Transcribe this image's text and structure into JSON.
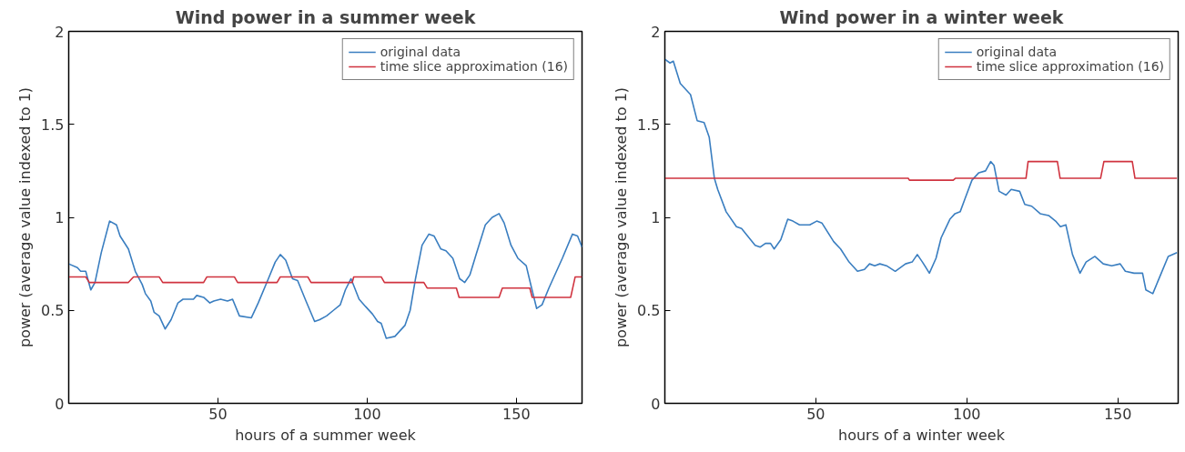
{
  "chart_data": [
    {
      "type": "line",
      "title": "Wind power in a summer week",
      "xlabel": "hours of a summer week",
      "ylabel": "power (average value indexed to 1)",
      "xlim": [
        0,
        172
      ],
      "ylim": [
        0,
        2
      ],
      "xticks": [
        50,
        100,
        150
      ],
      "yticks": [
        0,
        0.5,
        1,
        1.5,
        2
      ],
      "grid": false,
      "legend": "top right",
      "series": [
        {
          "name": "original data",
          "color": "#3a7ec0",
          "x": [
            0,
            2.9,
            4,
            5.7,
            7.4,
            8.8,
            10.9,
            13.7,
            16,
            17.2,
            20,
            22.3,
            24.6,
            25.7,
            27.5,
            28.6,
            30.3,
            32.3,
            34.3,
            36.6,
            38.3,
            41.8,
            42.9,
            45.2,
            47.3,
            48.6,
            50.9,
            53.2,
            54.9,
            57.2,
            61.2,
            63.5,
            66.9,
            69.2,
            70.9,
            72.7,
            75,
            76.7,
            79.5,
            82.4,
            84.1,
            86.4,
            88.7,
            91,
            92.7,
            94.6,
            97.3,
            99.5,
            101.8,
            103.5,
            104.7,
            106.4,
            109.3,
            112.7,
            114.4,
            116.2,
            118.4,
            120.7,
            122.4,
            124.7,
            126.4,
            128.7,
            131,
            132.7,
            134.4,
            136.7,
            139.6,
            141.9,
            144.2,
            145.9,
            148.2,
            150.5,
            153.3,
            155.1,
            156.8,
            158.6,
            160.9,
            165.4,
            168.8,
            170.5,
            172
          ],
          "values": [
            0.75,
            0.73,
            0.71,
            0.71,
            0.61,
            0.65,
            0.81,
            0.98,
            0.96,
            0.9,
            0.83,
            0.71,
            0.64,
            0.59,
            0.55,
            0.49,
            0.47,
            0.4,
            0.45,
            0.54,
            0.56,
            0.56,
            0.58,
            0.57,
            0.54,
            0.55,
            0.56,
            0.55,
            0.56,
            0.47,
            0.46,
            0.54,
            0.67,
            0.76,
            0.8,
            0.77,
            0.67,
            0.66,
            0.55,
            0.44,
            0.45,
            0.47,
            0.5,
            0.53,
            0.61,
            0.67,
            0.56,
            0.52,
            0.48,
            0.44,
            0.43,
            0.35,
            0.36,
            0.42,
            0.5,
            0.67,
            0.85,
            0.91,
            0.9,
            0.83,
            0.82,
            0.78,
            0.67,
            0.65,
            0.69,
            0.81,
            0.96,
            1.0,
            1.02,
            0.97,
            0.85,
            0.78,
            0.74,
            0.62,
            0.51,
            0.53,
            0.62,
            0.78,
            0.91,
            0.9,
            0.84
          ]
        },
        {
          "name": "time slice approximation (16)",
          "color": "#d0333f",
          "x": [
            0,
            5.7,
            6.9,
            20,
            21.7,
            30.3,
            31.5,
            45.2,
            46.3,
            55.5,
            56.6,
            69.8,
            70.9,
            80.1,
            81.2,
            95,
            95.5,
            104.7,
            105.8,
            119,
            120.1,
            129.9,
            130.8,
            144.2,
            145.3,
            154.5,
            155.3,
            168.2,
            169.7,
            172
          ],
          "values": [
            0.68,
            0.68,
            0.65,
            0.65,
            0.68,
            0.68,
            0.65,
            0.65,
            0.68,
            0.68,
            0.65,
            0.65,
            0.68,
            0.68,
            0.65,
            0.65,
            0.68,
            0.68,
            0.65,
            0.65,
            0.62,
            0.62,
            0.57,
            0.57,
            0.62,
            0.62,
            0.57,
            0.57,
            0.68,
            0.68
          ]
        }
      ]
    },
    {
      "type": "line",
      "title": "Wind power in a winter week",
      "xlabel": "hours of a winter week",
      "ylabel": "power (average value indexed to 1)",
      "xlim": [
        0,
        170
      ],
      "ylim": [
        0,
        2
      ],
      "xticks": [
        50,
        100,
        150
      ],
      "yticks": [
        0,
        0.5,
        1,
        1.5,
        2
      ],
      "grid": false,
      "legend": "top right",
      "series": [
        {
          "name": "original data",
          "color": "#3a7ec0",
          "x": [
            0,
            1.7,
            2.8,
            5.1,
            8.5,
            10.7,
            13,
            14.7,
            16.4,
            17.5,
            20.3,
            23.7,
            25.4,
            29.9,
            31.6,
            33.3,
            35,
            36.2,
            38.4,
            40.7,
            42.4,
            44.6,
            48,
            50.3,
            52,
            55.9,
            58.2,
            61,
            63.8,
            66.1,
            67.8,
            69.5,
            71.2,
            73.4,
            76.3,
            79.7,
            81.9,
            83.6,
            85.3,
            87.6,
            89.8,
            91.5,
            94.4,
            96.1,
            97.8,
            99.4,
            101.7,
            104,
            106.2,
            107.9,
            109,
            110.7,
            113,
            114.7,
            117.5,
            119.2,
            121.5,
            124.3,
            127.1,
            129.4,
            131,
            132.8,
            135,
            137.5,
            139.5,
            142.4,
            145.2,
            148,
            150.8,
            152.5,
            155.4,
            158.2,
            159.3,
            161.6,
            164.4,
            166.7,
            169.6
          ],
          "values": [
            1.85,
            1.83,
            1.84,
            1.72,
            1.66,
            1.52,
            1.51,
            1.43,
            1.21,
            1.15,
            1.03,
            0.95,
            0.94,
            0.85,
            0.84,
            0.86,
            0.86,
            0.83,
            0.88,
            0.99,
            0.98,
            0.96,
            0.96,
            0.98,
            0.97,
            0.87,
            0.83,
            0.76,
            0.71,
            0.72,
            0.75,
            0.74,
            0.75,
            0.74,
            0.71,
            0.75,
            0.76,
            0.8,
            0.76,
            0.7,
            0.78,
            0.89,
            0.99,
            1.02,
            1.03,
            1.1,
            1.2,
            1.24,
            1.25,
            1.3,
            1.28,
            1.14,
            1.12,
            1.15,
            1.14,
            1.07,
            1.06,
            1.02,
            1.01,
            0.98,
            0.95,
            0.96,
            0.8,
            0.7,
            0.76,
            0.79,
            0.75,
            0.74,
            0.75,
            0.71,
            0.7,
            0.7,
            0.61,
            0.59,
            0.7,
            0.79,
            0.81
          ]
        },
        {
          "name": "time slice approximation (16)",
          "color": "#d0333f",
          "x": [
            0,
            80.6,
            81,
            95.5,
            96.2,
            119.6,
            120.3,
            130,
            130.9,
            144.3,
            145.4,
            154.8,
            155.7,
            169.6
          ],
          "values": [
            1.21,
            1.21,
            1.2,
            1.2,
            1.21,
            1.21,
            1.3,
            1.3,
            1.21,
            1.21,
            1.3,
            1.3,
            1.21,
            1.21
          ]
        }
      ]
    }
  ]
}
